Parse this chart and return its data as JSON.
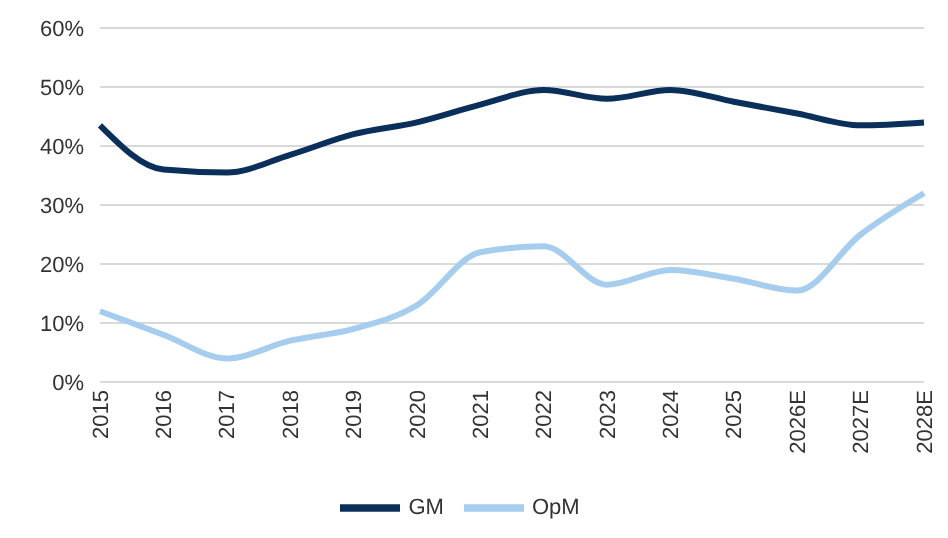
{
  "chart_data": {
    "type": "line",
    "categories": [
      "2015",
      "2016",
      "2017",
      "2018",
      "2019",
      "2020",
      "2021",
      "2022",
      "2023",
      "2024",
      "2025",
      "2026E",
      "2027E",
      "2028E"
    ],
    "series": [
      {
        "name": "GM",
        "color": "#0b2f5b",
        "values": [
          43.5,
          36,
          35.5,
          38.5,
          42,
          44,
          47,
          49.5,
          48,
          49.5,
          47.5,
          45.5,
          43.5,
          44
        ]
      },
      {
        "name": "OpM",
        "color": "#a6cdee",
        "values": [
          12,
          8,
          4,
          7,
          9,
          13,
          22,
          23,
          16.5,
          19,
          17.5,
          15.5,
          25,
          32
        ]
      }
    ],
    "ylim": [
      0,
      60
    ],
    "yticks": [
      {
        "value": 0,
        "label": "0%"
      },
      {
        "value": 10,
        "label": "10%"
      },
      {
        "value": 20,
        "label": "20%"
      },
      {
        "value": 30,
        "label": "30%"
      },
      {
        "value": 40,
        "label": "40%"
      },
      {
        "value": 50,
        "label": "50%"
      },
      {
        "value": 60,
        "label": "60%"
      }
    ],
    "grid": "y",
    "legend": "bottom",
    "marker": "none",
    "line_style": "solid"
  }
}
